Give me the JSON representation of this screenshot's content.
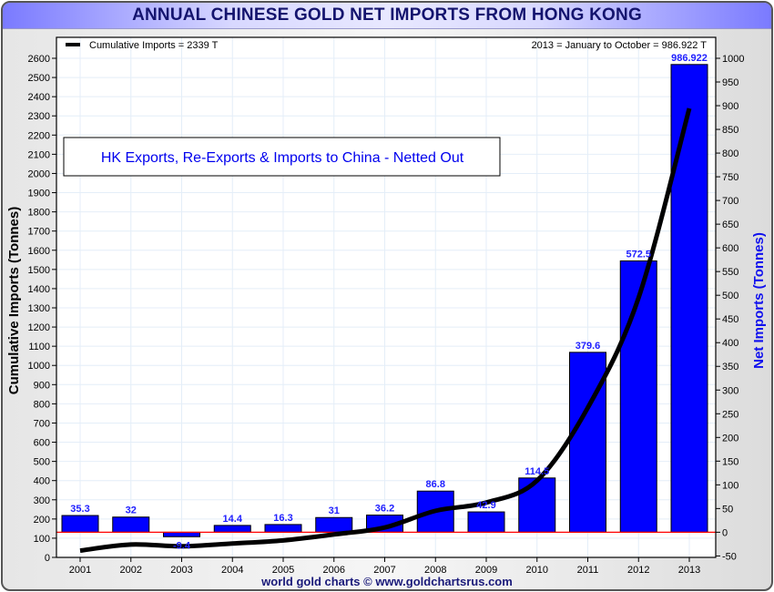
{
  "chart_data": {
    "type": "bar",
    "title": "ANNUAL CHINESE GOLD NET IMPORTS FROM HONG KONG",
    "categories": [
      "2001",
      "2002",
      "2003",
      "2004",
      "2005",
      "2006",
      "2007",
      "2008",
      "2009",
      "2010",
      "2011",
      "2012",
      "2013"
    ],
    "series": [
      {
        "name": "Net Imports",
        "type": "bar",
        "axis": "right",
        "color": "#0000ff",
        "values": [
          35.3,
          32,
          -9.4,
          14.4,
          16.3,
          31,
          36.2,
          86.8,
          42.9,
          114.5,
          379.6,
          572.5,
          986.922
        ],
        "labels": [
          "35.3",
          "32",
          "-9.4",
          "14.4",
          "16.3",
          "31",
          "36.2",
          "86.8",
          "42.9",
          "114.5",
          "379.6",
          "572.5",
          "986.922"
        ]
      },
      {
        "name": "Cumulative Imports",
        "type": "line",
        "axis": "left",
        "color": "#000000",
        "values": [
          35.3,
          67.3,
          57.9,
          72.3,
          88.6,
          119.6,
          155.8,
          242.6,
          285.5,
          400,
          779.6,
          1352.1,
          2339
        ]
      }
    ],
    "ylabel_left": "Cumulative Imports (Tonnes)",
    "ylabel_right": "Net Imports (Tonnes)",
    "ylim_left": [
      0,
      2600
    ],
    "ylim_right": [
      -50,
      1000
    ],
    "yticks_left_step": 100,
    "yticks_right_step": 50,
    "legend": {
      "entry": "Cumulative Imports = 2339 T",
      "placement": "top-left"
    },
    "note_right": "2013 = January to October = 986.922 T",
    "annotation": "HK Exports, Re-Exports & Imports to China - Netted Out",
    "footer": "world gold charts © www.goldchartsrus.com",
    "grid": true,
    "zero_line_color": "#ff0000"
  }
}
